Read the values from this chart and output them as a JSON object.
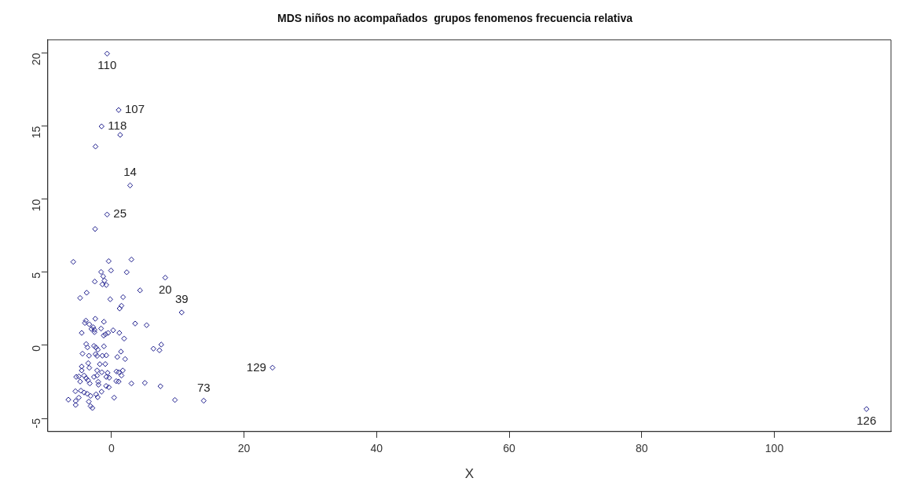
{
  "chart_data": {
    "type": "scatter",
    "title": "MDS niños no acompañados  grupos fenomenos frecuencia relativa",
    "xlabel": "X",
    "series": [
      {
        "color": "#1c1c8c",
        "x": [
          -0.65,
          1.09,
          -1.48,
          1.32,
          -2.4,
          2.82,
          -0.65,
          -2.46,
          8.12,
          10.6,
          5.31,
          6.34,
          7.25,
          7.52,
          24.3,
          5.04,
          7.4,
          9.58,
          13.92,
          113.9,
          -0.41,
          3.02,
          -1.56,
          -0.06,
          2.31,
          -1.24,
          -1.05,
          -0.77,
          -1.36,
          4.32,
          -0.18,
          1.76,
          1.52,
          1.24,
          3.58,
          -1.13,
          -2.43,
          -1.56,
          -0.89,
          -0.5,
          0.26,
          1.2,
          1.92,
          -1.13,
          -2.04,
          -1.36,
          -0.77,
          0.89,
          1.44,
          2.07,
          -1.75,
          -0.92,
          -1.45,
          -0.57,
          0.77,
          1.13,
          1.72,
          1.52,
          -0.77,
          -2.16,
          -1.99,
          0.73,
          1.09,
          -0.8,
          3.02,
          -1.48,
          -2.07,
          0.41,
          -5.75,
          -2.51,
          -3.73,
          -4.72,
          -3.85,
          -4.0,
          -3.34,
          -2.75,
          -3.02,
          -2.55,
          -4.48,
          -2.55,
          -1.16,
          -3.81,
          -3.61,
          -2.63,
          -2.35,
          -4.36,
          -3.38,
          -2.39,
          -2.16,
          -3.5,
          -4.48,
          -3.34,
          -4.48,
          -2.16,
          -4.92,
          -5.31,
          -4.12,
          -3.81,
          -3.53,
          -2.63,
          -0.33,
          -4.72,
          -3.26,
          -1.95,
          -0.38,
          -5.43,
          -4.6,
          -4.12,
          -3.65,
          -3.14,
          -2.31,
          -4.92,
          -6.49,
          -5.39,
          -5.39,
          -3.41,
          -3.14,
          -2.87
        ],
        "values": [
          19.96,
          16.1,
          14.98,
          14.4,
          13.6,
          10.94,
          8.95,
          7.96,
          4.63,
          2.25,
          1.38,
          -0.23,
          -0.34,
          0.05,
          -1.53,
          -2.57,
          -2.8,
          -3.74,
          -3.79,
          -4.36,
          5.76,
          5.87,
          5.02,
          5.12,
          5.0,
          4.72,
          4.43,
          4.13,
          4.17,
          3.76,
          3.15,
          3.3,
          2.71,
          2.52,
          1.49,
          1.61,
          1.82,
          1.15,
          0.76,
          0.85,
          1.03,
          0.85,
          0.46,
          -0.07,
          -0.3,
          -0.71,
          -0.69,
          -0.8,
          -0.43,
          -0.94,
          -1.29,
          -1.28,
          -1.84,
          -1.88,
          -1.79,
          -1.84,
          -1.72,
          -2.07,
          -2.16,
          -2.07,
          -2.5,
          -2.45,
          -2.48,
          -2.78,
          -2.61,
          -3.17,
          -3.55,
          -3.58,
          5.71,
          4.36,
          3.6,
          3.24,
          1.69,
          1.53,
          1.44,
          1.24,
          1.12,
          1.06,
          0.85,
          0.9,
          0.67,
          0.09,
          -0.14,
          -0.04,
          -0.14,
          -0.57,
          -0.71,
          -0.6,
          -0.73,
          -1.22,
          -1.45,
          -1.54,
          -1.72,
          -1.72,
          -2.13,
          -2.16,
          -2.07,
          -2.25,
          -2.39,
          -2.16,
          -2.22,
          -2.48,
          -2.61,
          -2.7,
          -2.87,
          -3.14,
          -3.1,
          -3.23,
          -3.31,
          -3.46,
          -3.35,
          -3.58,
          -3.72,
          -3.81,
          -4.08,
          -3.85,
          -4.16,
          -4.29
        ]
      }
    ],
    "marker": "diamond",
    "grid": false,
    "legend": false,
    "xlim": [
      -9.6,
      117.6
    ],
    "ylim": [
      -5.9,
      20.9
    ],
    "xticks": [
      0,
      20,
      40,
      60,
      80,
      100
    ],
    "yticks": [
      -5,
      0,
      5,
      10,
      15,
      20
    ],
    "annotations": [
      {
        "text": "110",
        "x": -0.65,
        "y": 19.96
      },
      {
        "text": "107",
        "x": 1.09,
        "y": 16.1
      },
      {
        "text": "118",
        "x": -1.48,
        "y": 14.98
      },
      {
        "text": "14",
        "x": 2.82,
        "y": 10.94
      },
      {
        "text": "25",
        "x": -0.65,
        "y": 8.95
      },
      {
        "text": "20",
        "x": 8.12,
        "y": 4.63
      },
      {
        "text": "39",
        "x": 10.6,
        "y": 2.25
      },
      {
        "text": "129",
        "x": 24.3,
        "y": -1.53
      },
      {
        "text": "73",
        "x": 13.92,
        "y": -3.79
      },
      {
        "text": "126",
        "x": 113.9,
        "y": -4.36
      }
    ]
  }
}
